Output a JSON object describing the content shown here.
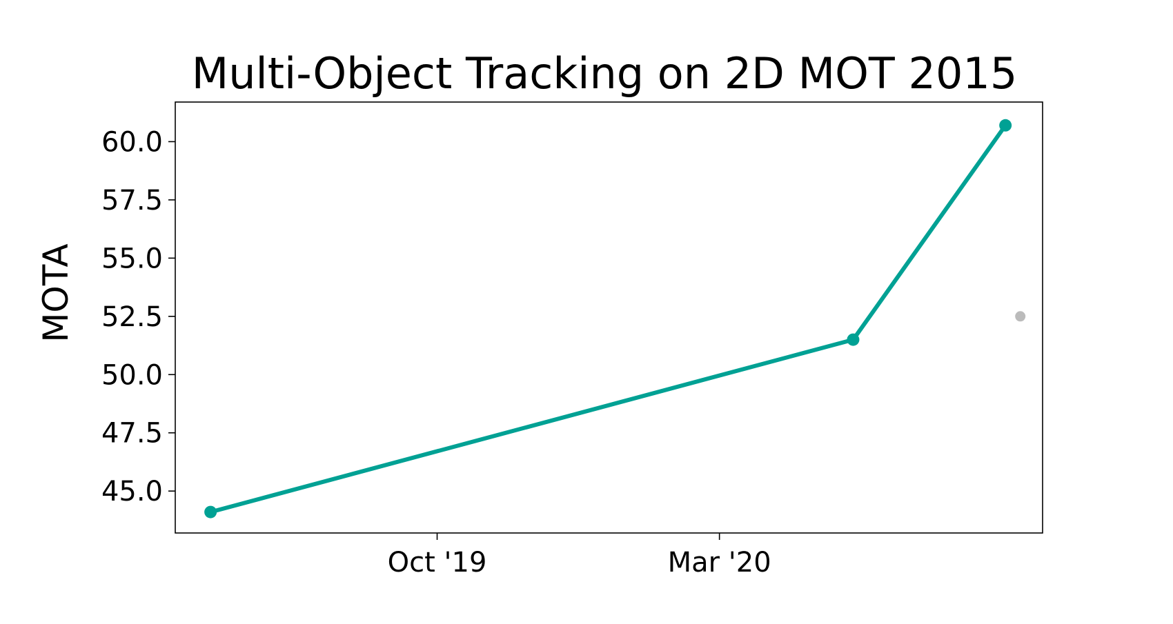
{
  "chart_data": {
    "type": "line",
    "title": "Multi-Object Tracking on 2D MOT 2015",
    "xlabel": "",
    "ylabel": "MOTA",
    "x_axis_type": "date",
    "xlim": [
      "2019-05-13",
      "2020-08-22"
    ],
    "ylim": [
      43.2,
      61.7
    ],
    "x_ticks": [
      {
        "value": "2019-10-01",
        "label": "Oct '19"
      },
      {
        "value": "2020-03-01",
        "label": "Mar '20"
      }
    ],
    "y_ticks": [
      {
        "value": 45.0,
        "label": "45.0"
      },
      {
        "value": 47.5,
        "label": "47.5"
      },
      {
        "value": 50.0,
        "label": "50.0"
      },
      {
        "value": 52.5,
        "label": "52.5"
      },
      {
        "value": 55.0,
        "label": "55.0"
      },
      {
        "value": 57.5,
        "label": "57.5"
      },
      {
        "value": 60.0,
        "label": "60.0"
      }
    ],
    "grid": false,
    "legend": "none",
    "series": [
      {
        "color": "#00a194",
        "style": "line-with-markers",
        "points": [
          {
            "x": "2019-06-01",
            "y": 44.1
          },
          {
            "x": "2020-05-12",
            "y": 51.5
          },
          {
            "x": "2020-08-02",
            "y": 60.7
          }
        ]
      },
      {
        "color": "#bbbbbb",
        "style": "markers",
        "points": [
          {
            "x": "2020-08-10",
            "y": 52.5
          }
        ]
      }
    ]
  }
}
